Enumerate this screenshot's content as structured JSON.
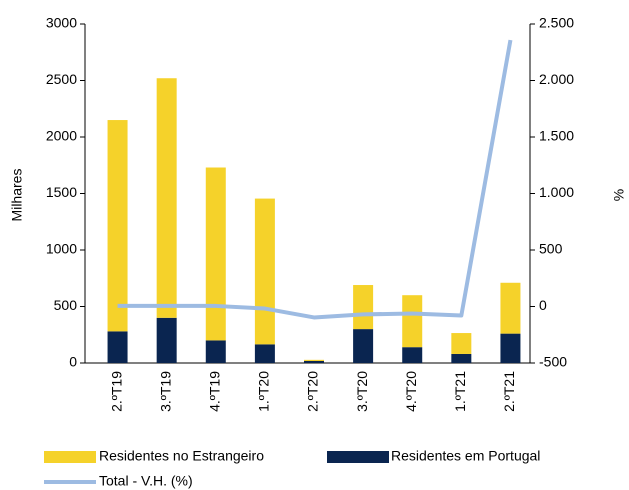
{
  "chart_data": {
    "type": "bar",
    "categories": [
      "2.ºT19",
      "3.ºT19",
      "4.ºT19",
      "1.ºT20",
      "2.ºT20",
      "3.ºT20",
      "4.ºT20",
      "1.ºT21",
      "2.ºT21"
    ],
    "series": [
      {
        "name": "Residentes no Estrangeiro",
        "color": "#f5d22a",
        "type": "bar",
        "values": [
          1870,
          2120,
          1530,
          1290,
          10,
          390,
          460,
          185,
          450
        ]
      },
      {
        "name": "Residentes em Portugal",
        "color": "#0a2550",
        "type": "bar",
        "values": [
          280,
          400,
          200,
          165,
          18,
          300,
          140,
          80,
          260
        ]
      },
      {
        "name": "Total - V.H. (%)",
        "color": "#9dbbe2",
        "type": "line",
        "axis": "y2",
        "values": [
          5,
          5,
          5,
          -18,
          -97,
          -70,
          -62,
          -80,
          2358
        ]
      }
    ],
    "ylabel": "Milhares",
    "y2label": "%",
    "ylim": [
      0,
      3000
    ],
    "yticks": [
      0,
      500,
      1000,
      1500,
      2000,
      2500,
      3000
    ],
    "y2lim": [
      -500,
      2500
    ],
    "y2ticks": [
      -500,
      0,
      500,
      {
        "value": 1000,
        "label": "1.000"
      },
      {
        "value": 1500,
        "label": "1.500"
      },
      {
        "value": 2000,
        "label": "2.000"
      },
      {
        "value": 2500,
        "label": "2.500"
      }
    ],
    "stacked": true
  }
}
